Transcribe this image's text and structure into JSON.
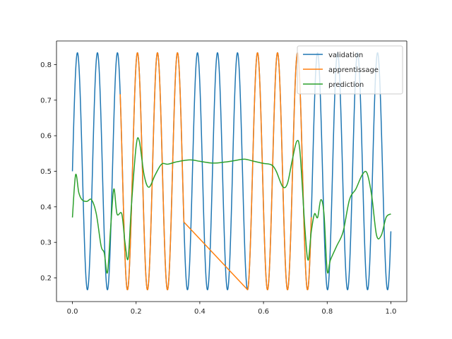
{
  "chart_data": {
    "type": "line",
    "title": "",
    "xlabel": "",
    "ylabel": "",
    "xlim": [
      -0.05,
      1.05
    ],
    "ylim": [
      0.1335,
      0.8665
    ],
    "x_ticks": [
      0.0,
      0.2,
      0.4,
      0.6,
      0.8,
      1.0
    ],
    "x_tick_labels": [
      "0.0",
      "0.2",
      "0.4",
      "0.6",
      "0.8",
      "1.0"
    ],
    "y_ticks": [
      0.2,
      0.3,
      0.4,
      0.5,
      0.6,
      0.7,
      0.8
    ],
    "y_tick_labels": [
      "0.2",
      "0.3",
      "0.4",
      "0.5",
      "0.6",
      "0.7",
      "0.8"
    ],
    "grid": false,
    "legend_position": "top-right",
    "series": [
      {
        "name": "validation",
        "color": "#1f77b4",
        "function": "0.5 + (1/3)*sin(100*x)",
        "x_range": [
          0.0,
          1.0
        ]
      },
      {
        "name": "apprentissage",
        "color": "#ff7f0e",
        "function": "0.5 + (1/3)*sin(100*x)",
        "segments": [
          [
            0.15,
            0.35
          ],
          [
            0.55,
            0.75
          ]
        ],
        "connected": true
      },
      {
        "name": "prediction",
        "color": "#2ca02c",
        "points": [
          [
            0.0,
            0.37
          ],
          [
            0.01,
            0.49
          ],
          [
            0.02,
            0.44
          ],
          [
            0.03,
            0.42
          ],
          [
            0.045,
            0.415
          ],
          [
            0.06,
            0.42
          ],
          [
            0.075,
            0.38
          ],
          [
            0.09,
            0.29
          ],
          [
            0.1,
            0.27
          ],
          [
            0.11,
            0.215
          ],
          [
            0.12,
            0.34
          ],
          [
            0.13,
            0.45
          ],
          [
            0.14,
            0.38
          ],
          [
            0.155,
            0.38
          ],
          [
            0.165,
            0.3
          ],
          [
            0.175,
            0.255
          ],
          [
            0.185,
            0.4
          ],
          [
            0.2,
            0.57
          ],
          [
            0.21,
            0.585
          ],
          [
            0.225,
            0.49
          ],
          [
            0.24,
            0.455
          ],
          [
            0.26,
            0.49
          ],
          [
            0.28,
            0.52
          ],
          [
            0.3,
            0.52
          ],
          [
            0.33,
            0.527
          ],
          [
            0.37,
            0.532
          ],
          [
            0.4,
            0.528
          ],
          [
            0.44,
            0.523
          ],
          [
            0.48,
            0.526
          ],
          [
            0.51,
            0.53
          ],
          [
            0.54,
            0.534
          ],
          [
            0.57,
            0.528
          ],
          [
            0.6,
            0.522
          ],
          [
            0.625,
            0.518
          ],
          [
            0.64,
            0.5
          ],
          [
            0.66,
            0.457
          ],
          [
            0.675,
            0.465
          ],
          [
            0.69,
            0.53
          ],
          [
            0.705,
            0.585
          ],
          [
            0.715,
            0.55
          ],
          [
            0.73,
            0.34
          ],
          [
            0.74,
            0.25
          ],
          [
            0.75,
            0.33
          ],
          [
            0.76,
            0.38
          ],
          [
            0.77,
            0.37
          ],
          [
            0.78,
            0.42
          ],
          [
            0.79,
            0.38
          ],
          [
            0.8,
            0.22
          ],
          [
            0.81,
            0.25
          ],
          [
            0.83,
            0.29
          ],
          [
            0.85,
            0.33
          ],
          [
            0.87,
            0.42
          ],
          [
            0.89,
            0.45
          ],
          [
            0.91,
            0.49
          ],
          [
            0.925,
            0.495
          ],
          [
            0.94,
            0.43
          ],
          [
            0.955,
            0.32
          ],
          [
            0.97,
            0.32
          ],
          [
            0.985,
            0.37
          ],
          [
            1.0,
            0.38
          ]
        ]
      }
    ]
  }
}
